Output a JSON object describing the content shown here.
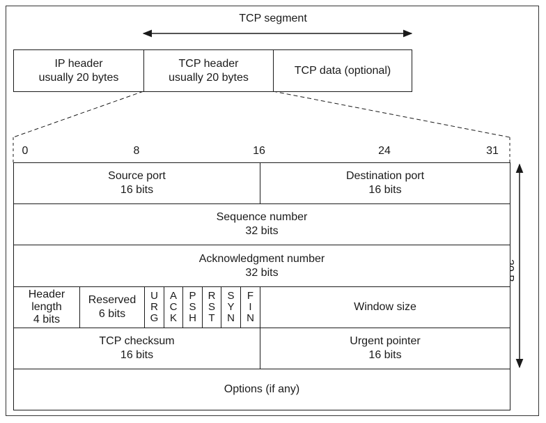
{
  "segment": {
    "title": "TCP segment",
    "ip_header": [
      "IP header",
      "usually 20 bytes"
    ],
    "tcp_header": [
      "TCP header",
      "usually 20 bytes"
    ],
    "tcp_data": "TCP data (optional)"
  },
  "bit_positions": [
    "0",
    "8",
    "16",
    "24",
    "31"
  ],
  "size_label": "20 B",
  "rows": {
    "source_port": [
      "Source port",
      "16 bits"
    ],
    "destination_port": [
      "Destination port",
      "16 bits"
    ],
    "sequence_number": [
      "Sequence number",
      "32 bits"
    ],
    "ack_number": [
      "Acknowledgment number",
      "32 bits"
    ],
    "header_length": [
      "Header",
      "length",
      "4 bits"
    ],
    "reserved": [
      "Reserved",
      "6 bits"
    ],
    "flags": [
      [
        "U",
        "R",
        "G"
      ],
      [
        "A",
        "C",
        "K"
      ],
      [
        "P",
        "S",
        "H"
      ],
      [
        "R",
        "S",
        "T"
      ],
      [
        "S",
        "Y",
        "N"
      ],
      [
        "F",
        "I",
        "N"
      ]
    ],
    "window_size": "Window size",
    "tcp_checksum": [
      "TCP checksum",
      "16 bits"
    ],
    "urgent_pointer": [
      "Urgent pointer",
      "16 bits"
    ],
    "options": "Options (if any)"
  }
}
